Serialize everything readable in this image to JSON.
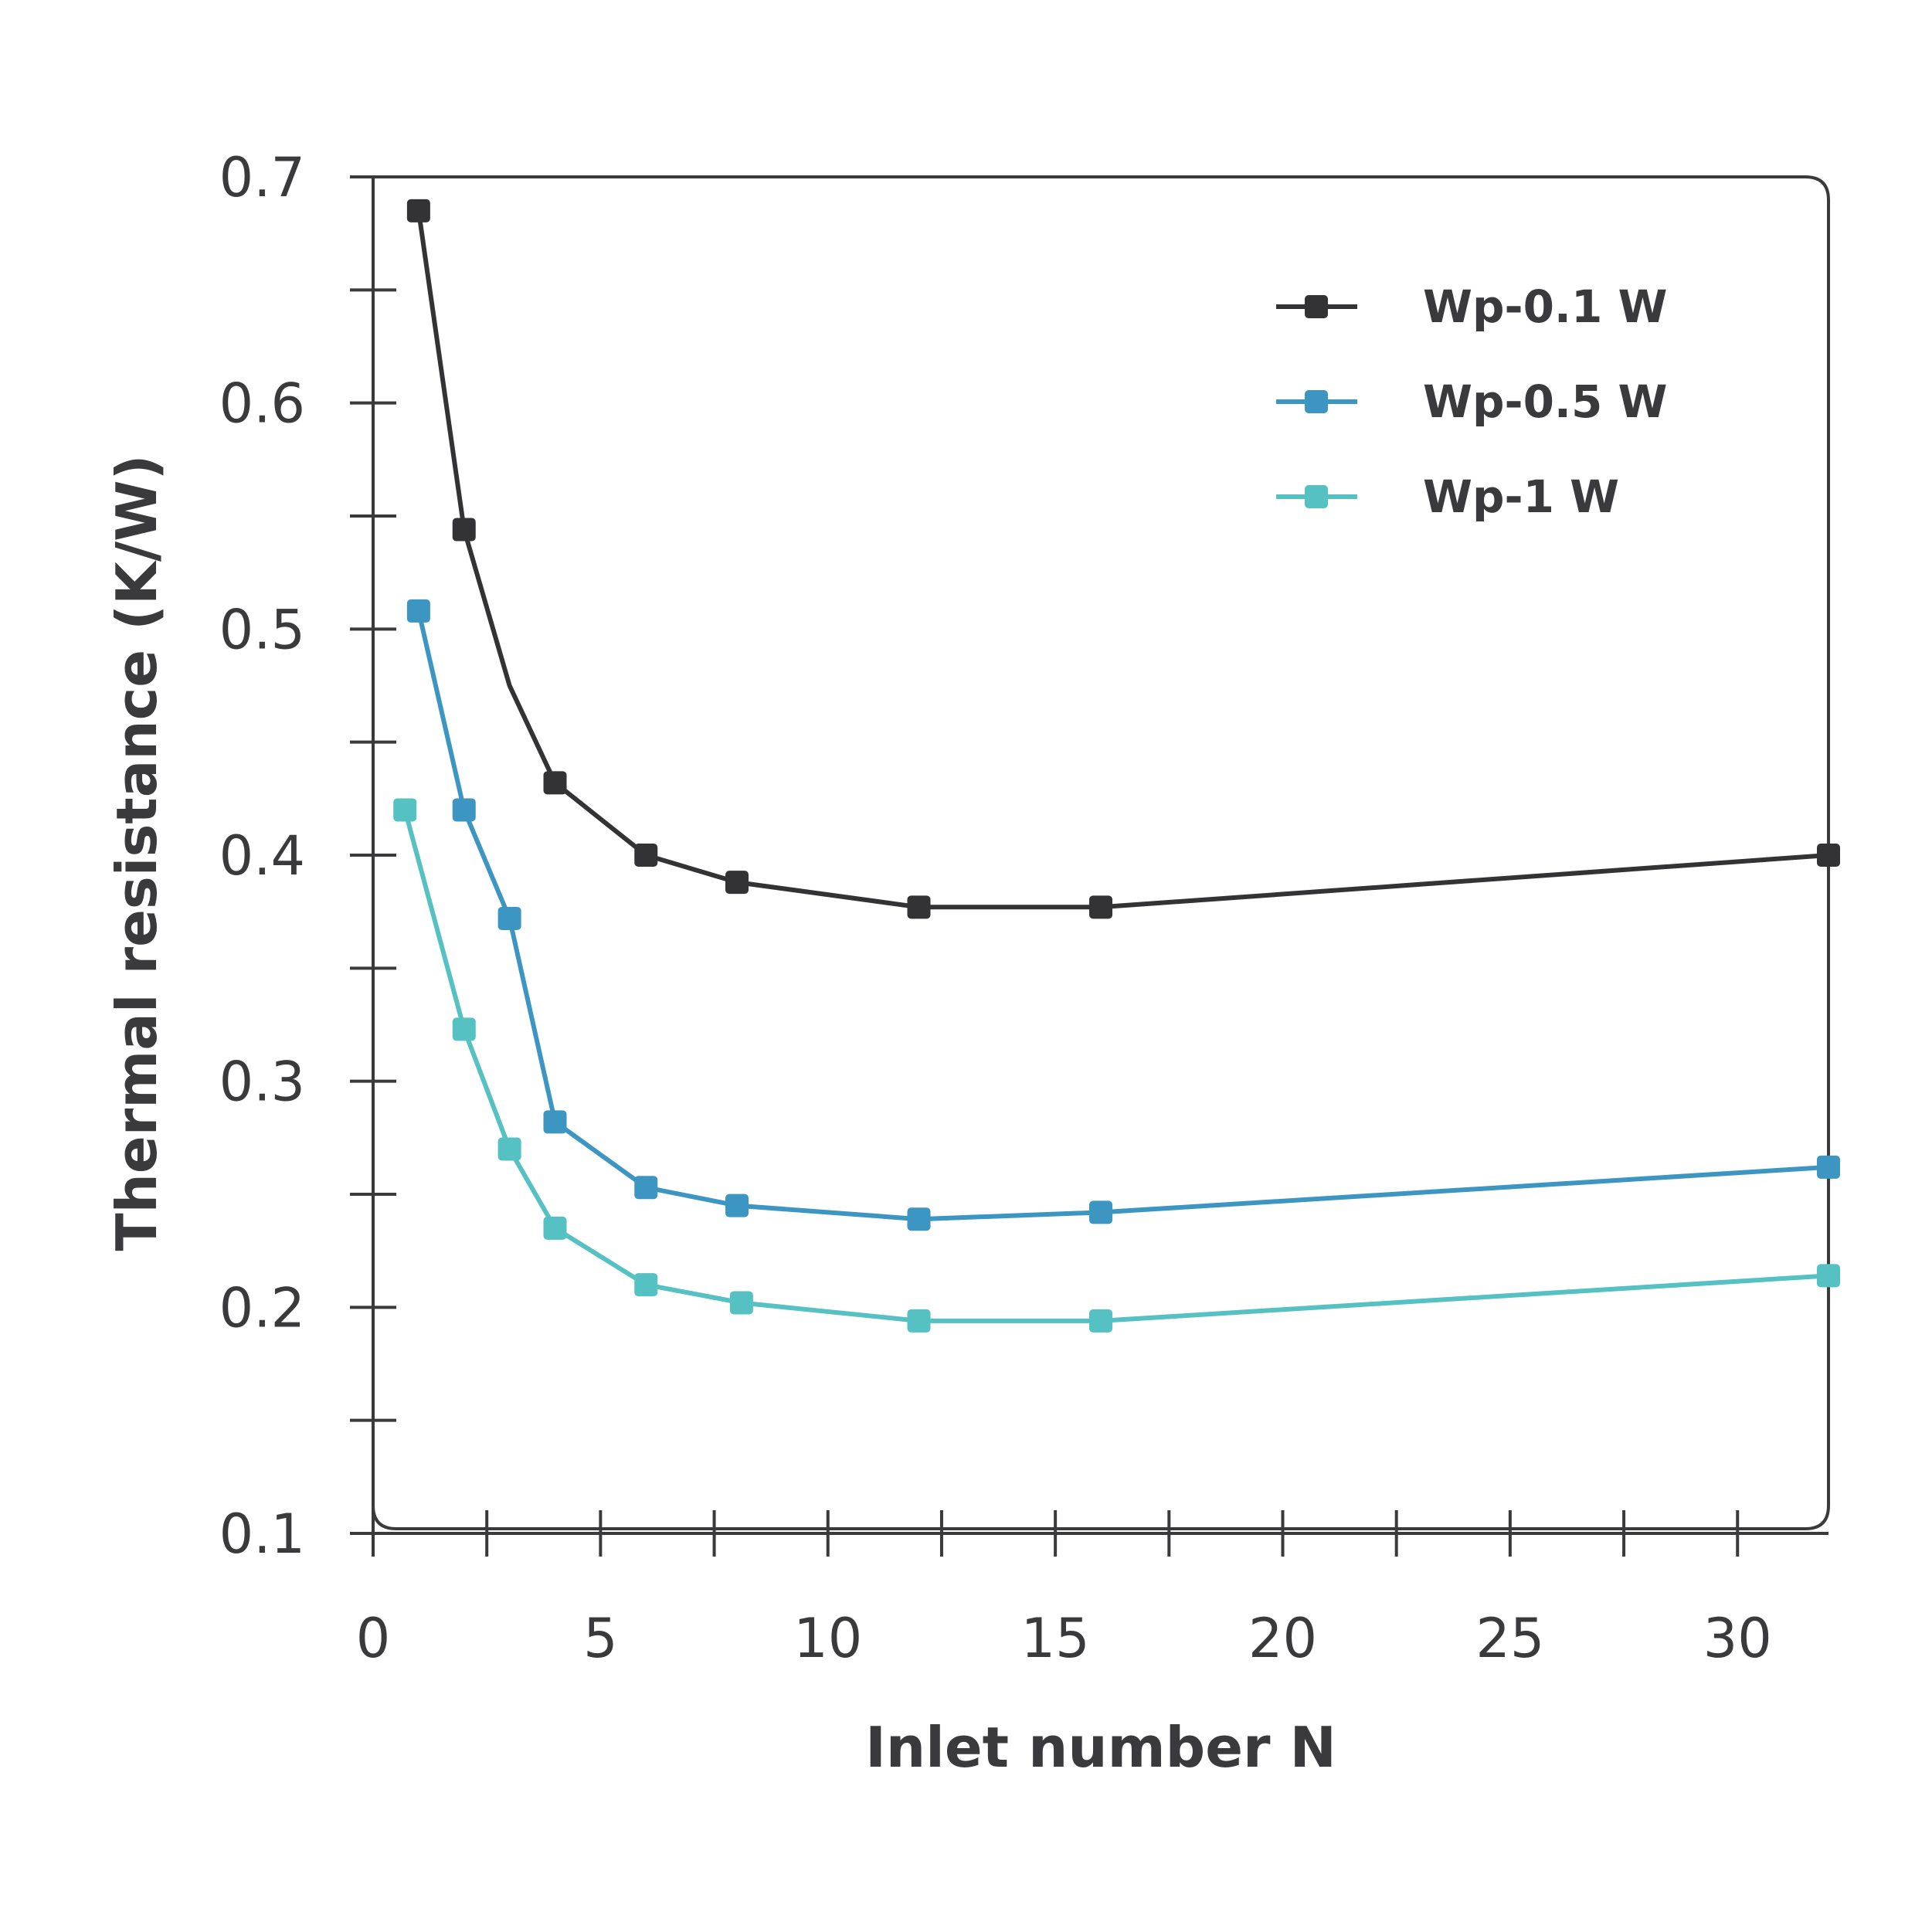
{
  "chart_data": {
    "type": "line",
    "title": "",
    "xlabel": "Inlet number N",
    "ylabel": "Thermal resistance (K/W)",
    "xlim": [
      0,
      32
    ],
    "ylim": [
      0.1,
      0.7
    ],
    "x_ticks": [
      0,
      5,
      10,
      15,
      20,
      25,
      30
    ],
    "y_ticks": [
      0.1,
      0.2,
      0.3,
      0.4,
      0.5,
      0.6,
      0.7
    ],
    "x_tick_labels": [
      "0",
      "5",
      "10",
      "15",
      "20",
      "25",
      "30"
    ],
    "y_tick_labels": [
      "0.1",
      "0.2",
      "0.3",
      "0.4",
      "0.5",
      "0.6",
      "0.7"
    ],
    "grid": false,
    "legend_position": "top-right",
    "series": [
      {
        "name": "Wp-0.1 W",
        "color": "#333335",
        "marker": "square",
        "points": [
          [
            1,
            0.685
          ],
          [
            2,
            0.544
          ],
          [
            4,
            0.432
          ],
          [
            6,
            0.4
          ],
          [
            8,
            0.388
          ],
          [
            12,
            0.377
          ],
          [
            16,
            0.377
          ],
          [
            32,
            0.4
          ]
        ],
        "line_path": [
          [
            1,
            0.685
          ],
          [
            2,
            0.544
          ],
          [
            3,
            0.475
          ],
          [
            4,
            0.432
          ],
          [
            6,
            0.4
          ],
          [
            8,
            0.388
          ],
          [
            12,
            0.377
          ],
          [
            16,
            0.377
          ],
          [
            32,
            0.4
          ]
        ]
      },
      {
        "name": "Wp-0.5 W",
        "color": "#3d96c2",
        "marker": "square",
        "points": [
          [
            1,
            0.508
          ],
          [
            2,
            0.42
          ],
          [
            3,
            0.372
          ],
          [
            4,
            0.282
          ],
          [
            6,
            0.253
          ],
          [
            8,
            0.245
          ],
          [
            12,
            0.239
          ],
          [
            16,
            0.242
          ],
          [
            32,
            0.262
          ]
        ],
        "line_path": [
          [
            1,
            0.508
          ],
          [
            2,
            0.42
          ],
          [
            3,
            0.372
          ],
          [
            4,
            0.282
          ],
          [
            6,
            0.253
          ],
          [
            8,
            0.245
          ],
          [
            12,
            0.239
          ],
          [
            16,
            0.242
          ],
          [
            32,
            0.262
          ]
        ]
      },
      {
        "name": "Wp-1 W",
        "color": "#56c1c3",
        "marker": "square",
        "points": [
          [
            0.7,
            0.42
          ],
          [
            2,
            0.323
          ],
          [
            3,
            0.27
          ],
          [
            4,
            0.235
          ],
          [
            6,
            0.21
          ],
          [
            8.1,
            0.202
          ],
          [
            12,
            0.194
          ],
          [
            16,
            0.194
          ],
          [
            32,
            0.214
          ]
        ],
        "line_path": [
          [
            0.7,
            0.42
          ],
          [
            2,
            0.323
          ],
          [
            3,
            0.27
          ],
          [
            4,
            0.235
          ],
          [
            6,
            0.21
          ],
          [
            8.1,
            0.202
          ],
          [
            12,
            0.194
          ],
          [
            16,
            0.194
          ],
          [
            32,
            0.214
          ]
        ]
      }
    ]
  }
}
